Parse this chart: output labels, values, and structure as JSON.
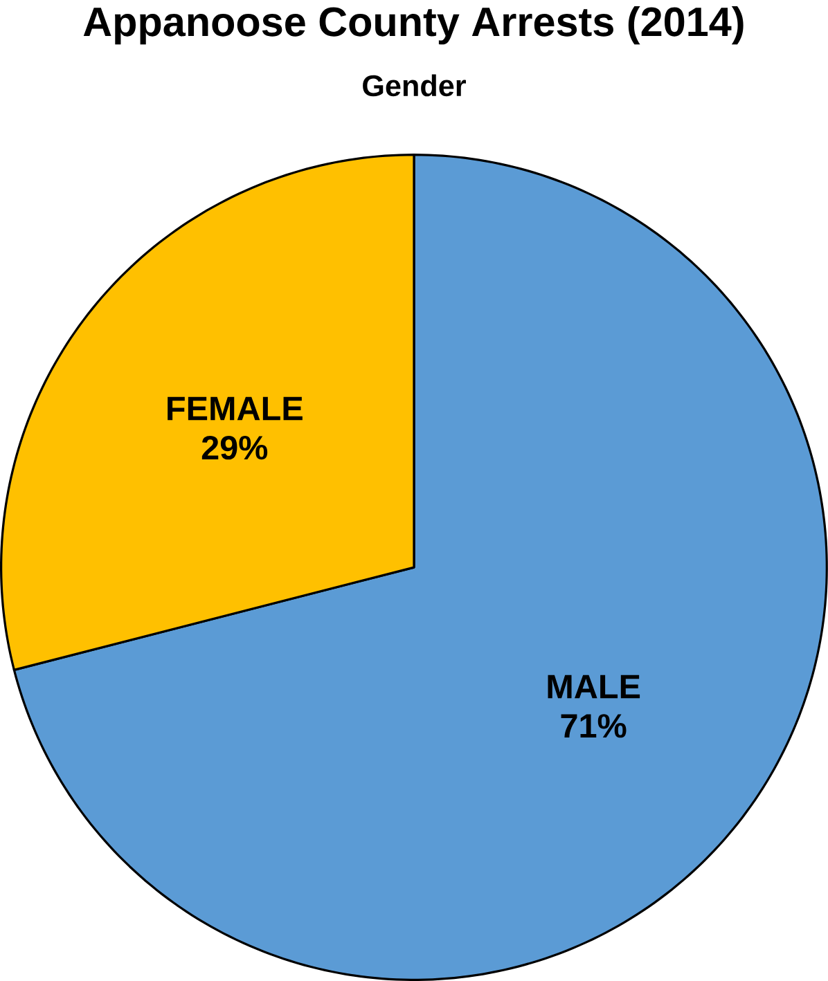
{
  "chart_data": {
    "type": "pie",
    "title": "Appanoose County Arrests (2014)",
    "subtitle": "Gender",
    "categories": [
      "MALE",
      "FEMALE"
    ],
    "values": [
      71,
      29
    ],
    "value_labels": [
      "71%",
      "29%"
    ],
    "colors": [
      "#5b9bd5",
      "#ffc000"
    ]
  }
}
